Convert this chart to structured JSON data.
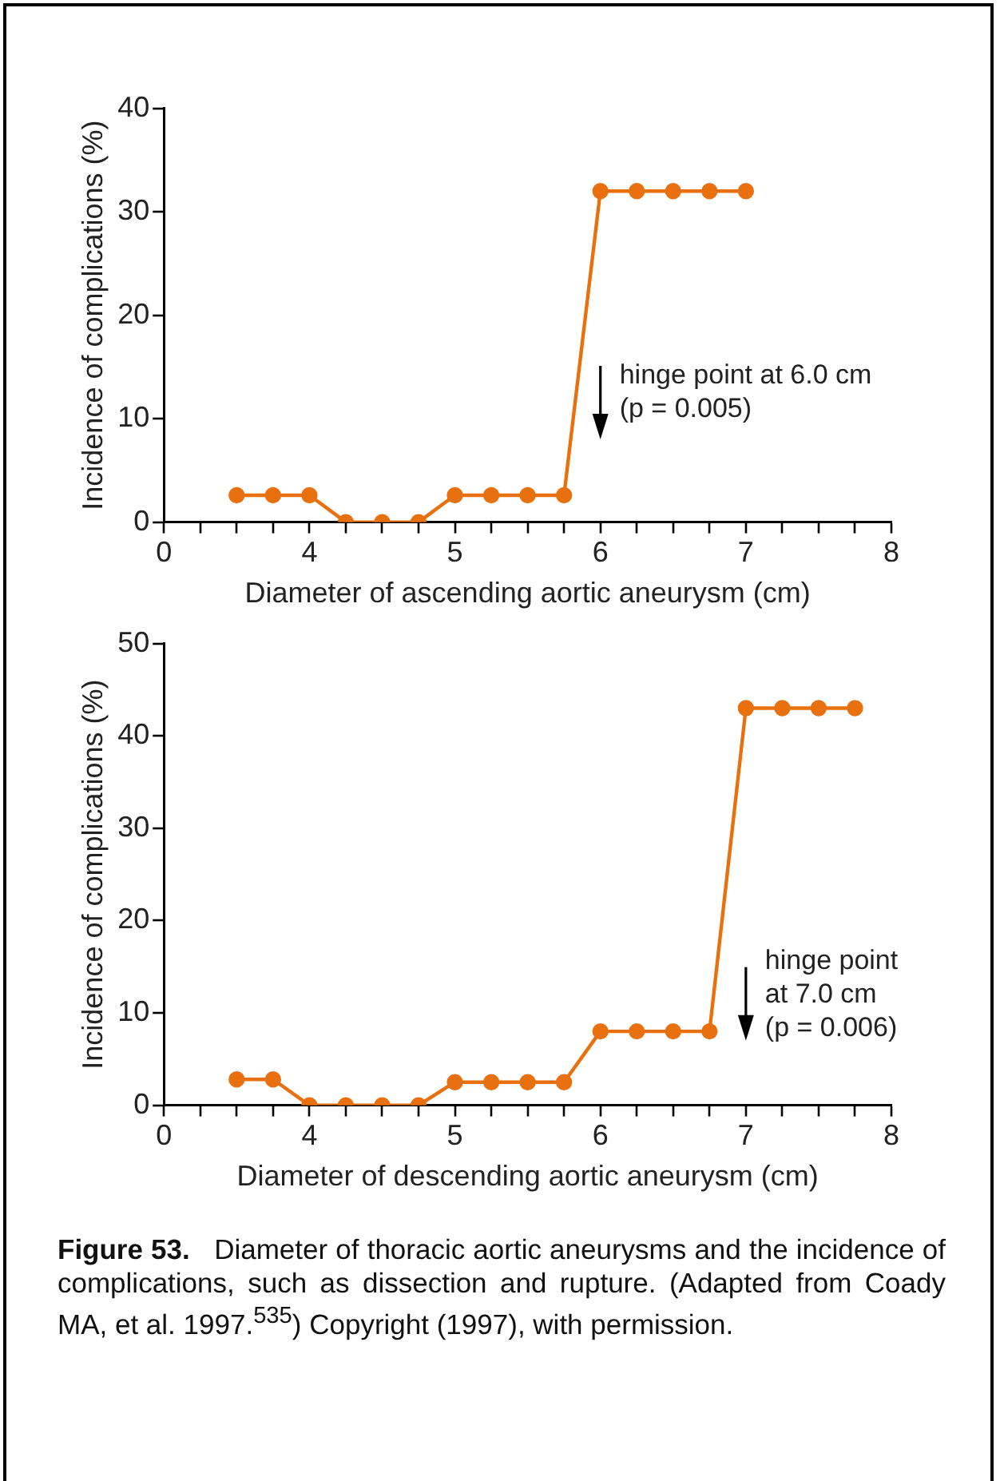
{
  "chart_data": [
    {
      "type": "line",
      "xlabel": "Diameter of ascending aortic aneurysm (cm)",
      "ylabel": "Incidence of complications (%)",
      "categories": [
        "0",
        null,
        null,
        null,
        "4",
        null,
        null,
        null,
        "5",
        null,
        null,
        null,
        "6",
        null,
        null,
        null,
        "7",
        null,
        null,
        null,
        "8"
      ],
      "series": [
        {
          "color": "#e8700e",
          "values": [
            null,
            null,
            2.6,
            2.6,
            2.6,
            0,
            0,
            0,
            2.6,
            2.6,
            2.6,
            2.6,
            32,
            32,
            32,
            32,
            32,
            null,
            null,
            null,
            null
          ]
        }
      ],
      "ylim": [
        0,
        40
      ],
      "yticks": [
        0,
        10,
        20,
        30,
        40
      ],
      "marker": "circle",
      "line_style": "solid",
      "annotations": [
        "hinge point at 6.0 cm (p = 0.005)"
      ]
    },
    {
      "type": "line",
      "xlabel": "Diameter of descending aortic aneurysm (cm)",
      "ylabel": "Incidence of complications (%)",
      "categories": [
        "0",
        null,
        null,
        null,
        "4",
        null,
        null,
        null,
        "5",
        null,
        null,
        null,
        "6",
        null,
        null,
        null,
        "7",
        null,
        null,
        null,
        "8"
      ],
      "series": [
        {
          "color": "#e8700e",
          "values": [
            null,
            null,
            2.8,
            2.8,
            0,
            0,
            0,
            0,
            2.5,
            2.5,
            2.5,
            2.5,
            8,
            8,
            8,
            8,
            43,
            43,
            43,
            43,
            null
          ]
        }
      ],
      "ylim": [
        0,
        50
      ],
      "yticks": [
        0,
        10,
        20,
        30,
        40,
        50
      ],
      "marker": "circle",
      "line_style": "solid",
      "annotations": [
        "hinge point at 7.0 cm (p = 0.006)",
        "Figure 53.",
        "Diameter of thoracic aortic aneurysms and the incidence of complications, such as dissection and rupture. (Adapted from Coady MA, et al. 1997.$^{535}$) Copyright (1997), with permission."
      ]
    }
  ]
}
